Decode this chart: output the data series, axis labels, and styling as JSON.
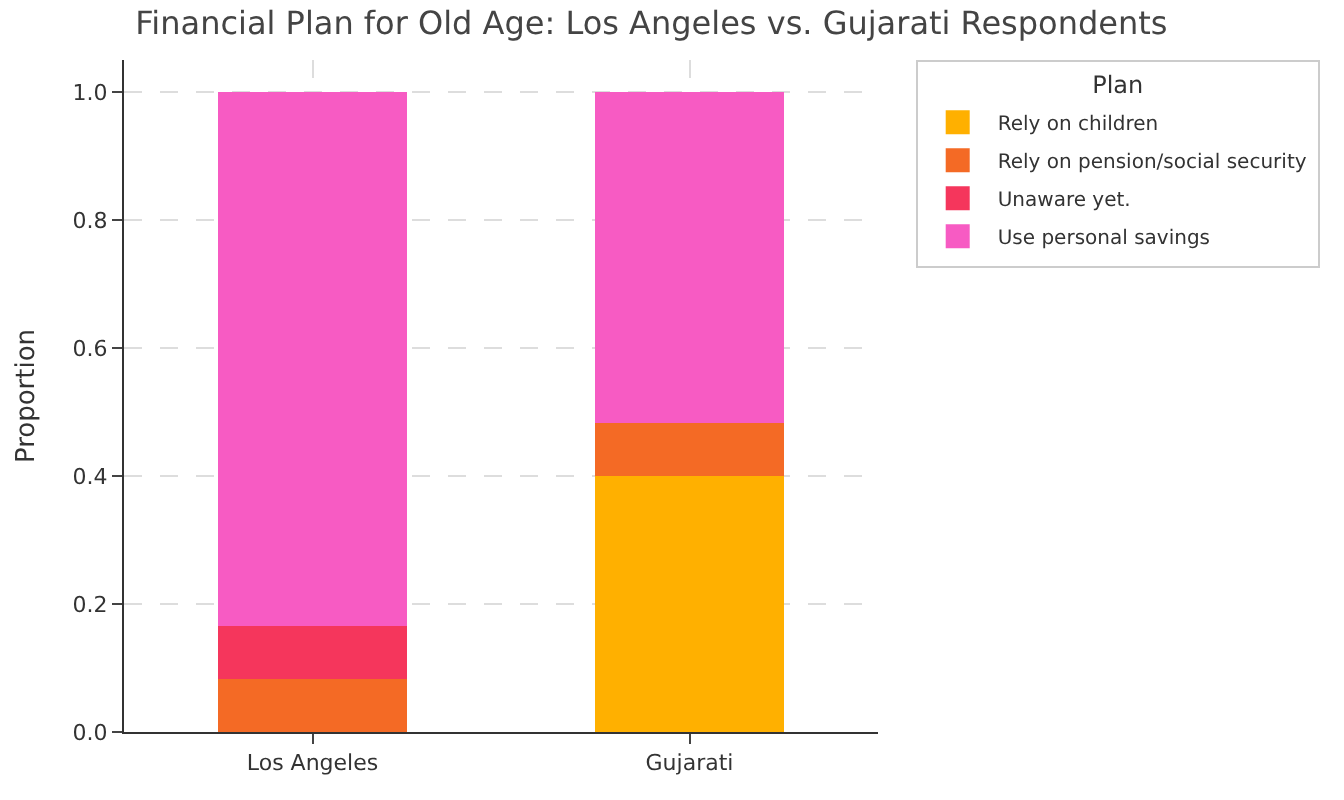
{
  "chart_data": {
    "type": "bar",
    "stacked": true,
    "title": "Financial Plan for Old Age: Los Angeles vs. Gujarati Respondents",
    "ylabel": "Proportion",
    "legend_title": "Plan",
    "legend": "top right",
    "grid": true,
    "categories": [
      "Los Angeles",
      "Gujarati"
    ],
    "series": [
      {
        "name": "Rely on children",
        "color": "#ffb000",
        "values": [
          0,
          0.4
        ]
      },
      {
        "name": "Rely on pension/social security",
        "color": "#f46a25",
        "values": [
          0.083,
          0.083
        ]
      },
      {
        "name": "Unaware yet.",
        "color": "#f5365c",
        "values": [
          0.083,
          0
        ]
      },
      {
        "name": "Use personal savings",
        "color": "#f75bc3",
        "values": [
          0.834,
          0.517
        ]
      }
    ],
    "ylim": [
      0,
      1.05
    ],
    "yticks": [
      {
        "value": 0,
        "label": "0.0"
      },
      {
        "value": 0.2,
        "label": "0.2"
      },
      {
        "value": 0.4,
        "label": "0.4"
      },
      {
        "value": 0.6,
        "label": "0.6"
      },
      {
        "value": 0.8,
        "label": "0.8"
      },
      {
        "value": 1,
        "label": "1.0"
      }
    ]
  }
}
